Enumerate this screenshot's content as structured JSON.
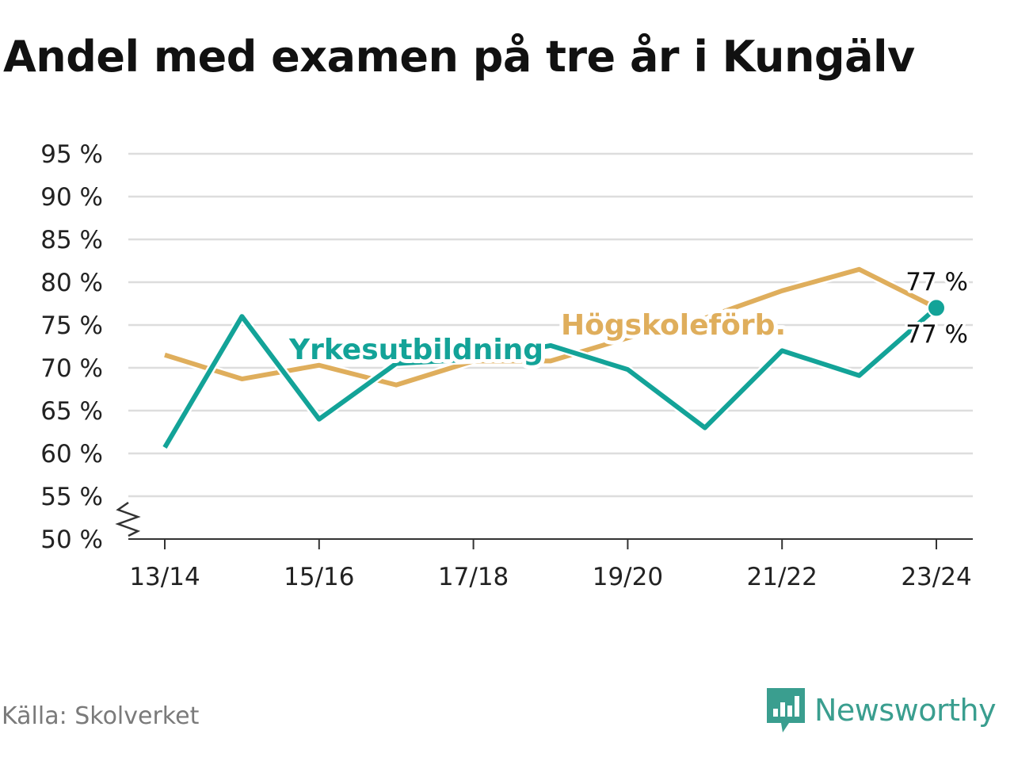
{
  "header": {
    "title": "Andel med examen på tre år i Kungälv"
  },
  "footer": {
    "source": "Källa: Skolverket",
    "brand": "Newsworthy"
  },
  "colors": {
    "yrkes": "#13a398",
    "hogskole": "#dfae5c",
    "grid": "#dddddd",
    "axis": "#333333",
    "text": "#222222"
  },
  "chart_data": {
    "type": "line",
    "ylim": [
      50,
      95
    ],
    "yticks": [
      50,
      55,
      60,
      65,
      70,
      75,
      80,
      85,
      90,
      95
    ],
    "ytick_labels": [
      "50 %",
      "55 %",
      "60 %",
      "65 %",
      "70 %",
      "75 %",
      "80 %",
      "85 %",
      "90 %",
      "95 %"
    ],
    "x": [
      "13/14",
      "14/15",
      "15/16",
      "16/17",
      "17/18",
      "18/19",
      "19/20",
      "20/21",
      "21/22",
      "22/23",
      "23/24"
    ],
    "xtick_labels": [
      "13/14",
      "15/16",
      "17/18",
      "19/20",
      "21/22",
      "23/24"
    ],
    "axis_break": true,
    "series": [
      {
        "name": "Högskoleförb.",
        "color": "#dfae5c",
        "values": [
          71.5,
          68.7,
          70.3,
          68.0,
          70.8,
          70.8,
          73.5,
          75.8,
          79.0,
          81.5,
          77.0
        ],
        "end_label": "77 %"
      },
      {
        "name": "Yrkesutbildning",
        "color": "#13a398",
        "values": [
          60.7,
          76.0,
          64.0,
          70.5,
          71.0,
          72.6,
          69.8,
          63.0,
          72.0,
          69.1,
          77.0
        ],
        "end_label": "77 %"
      }
    ]
  }
}
